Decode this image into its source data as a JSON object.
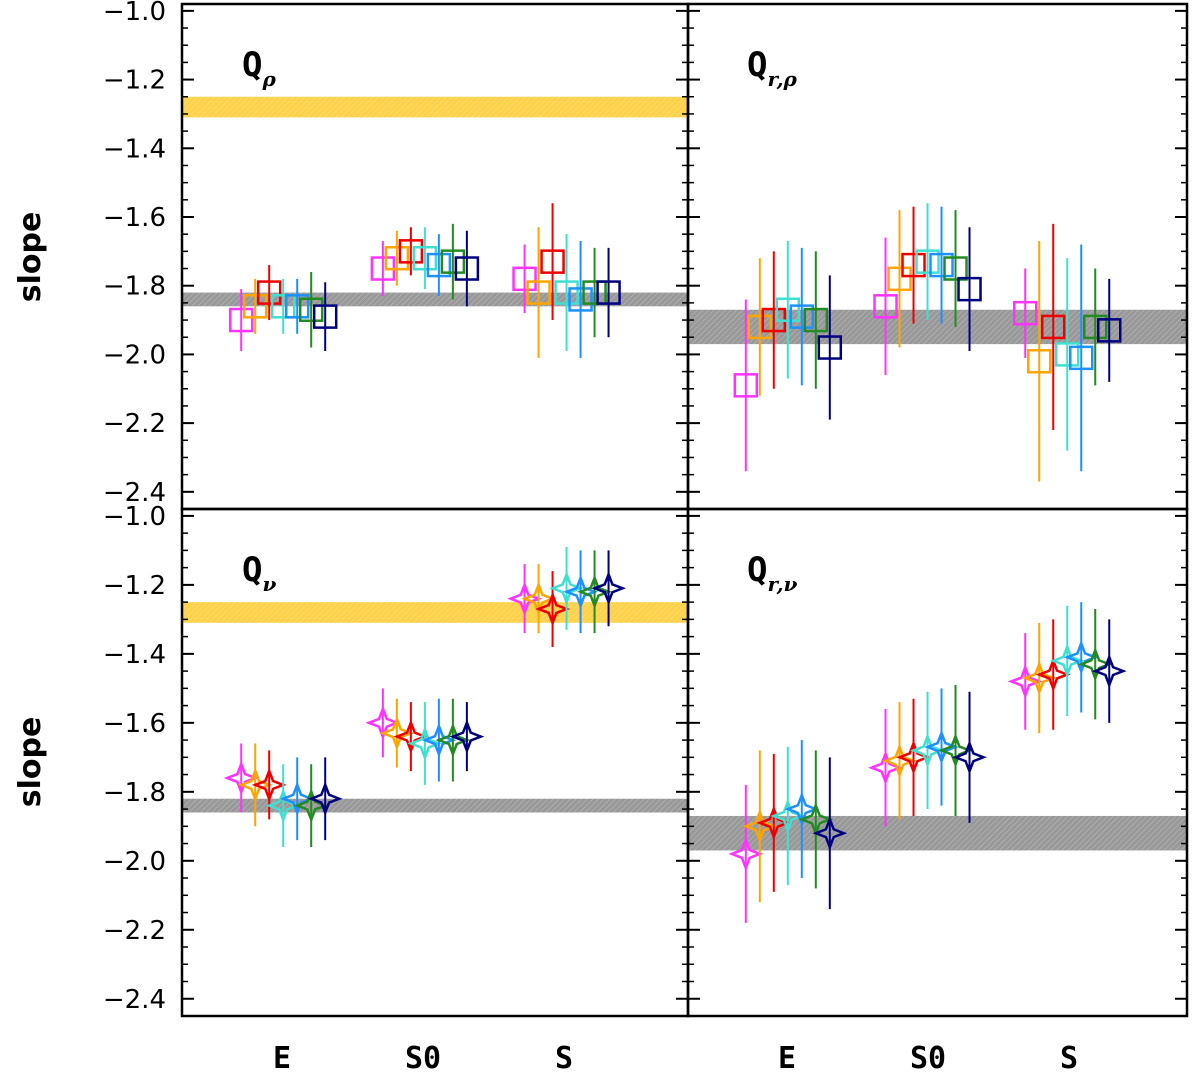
{
  "chart_data": {
    "type": "scatter",
    "ylabel": "slope",
    "categories": [
      "E",
      "S0",
      "S"
    ],
    "ylim": [
      -2.45,
      -0.98
    ],
    "yticks": [
      -1.0,
      -1.2,
      -1.4,
      -1.6,
      -1.8,
      -2.0,
      -2.2,
      -2.4
    ],
    "ytick_labels": [
      "−1.0",
      "−1.2",
      "−1.4",
      "−1.6",
      "−1.8",
      "−2.0",
      "−2.2",
      "−2.4"
    ],
    "series_colors": [
      "#ff33ff",
      "#ffa500",
      "#ee0000",
      "#40e0d0",
      "#1e90ff",
      "#228b22",
      "#000080"
    ],
    "panels": [
      {
        "id": "q-rho",
        "title": "Q",
        "subscript": "ρ",
        "marker": "square",
        "bands": [
          {
            "color": "#ffd24a",
            "y": [
              -1.25,
              -1.31
            ]
          },
          {
            "color": "#999999",
            "y": [
              -1.82,
              -1.86
            ]
          }
        ],
        "groups": [
          {
            "values": [
              -1.9,
              -1.86,
              -1.82,
              -1.86,
              -1.86,
              -1.87,
              -1.89
            ],
            "errors": [
              0.09,
              0.08,
              0.08,
              0.08,
              0.08,
              0.11,
              0.1
            ]
          },
          {
            "values": [
              -1.75,
              -1.72,
              -1.7,
              -1.72,
              -1.74,
              -1.73,
              -1.75
            ],
            "errors": [
              0.08,
              0.08,
              0.07,
              0.09,
              0.09,
              0.11,
              0.11
            ]
          },
          {
            "values": [
              -1.78,
              -1.82,
              -1.73,
              -1.82,
              -1.84,
              -1.82,
              -1.82
            ],
            "errors": [
              0.1,
              0.19,
              0.17,
              0.17,
              0.17,
              0.13,
              0.13
            ]
          }
        ]
      },
      {
        "id": "q-r-rho",
        "title": "Q",
        "subscript": "r,ρ",
        "marker": "square",
        "bands": [
          {
            "color": "#999999",
            "y": [
              -1.87,
              -1.97
            ]
          }
        ],
        "groups": [
          {
            "values": [
              -2.09,
              -1.92,
              -1.9,
              -1.87,
              -1.89,
              -1.9,
              -1.98
            ],
            "errors": [
              0.25,
              0.2,
              0.2,
              0.2,
              0.2,
              0.2,
              0.21
            ]
          },
          {
            "values": [
              -1.86,
              -1.78,
              -1.74,
              -1.73,
              -1.74,
              -1.75,
              -1.81
            ],
            "errors": [
              0.2,
              0.2,
              0.17,
              0.17,
              0.17,
              0.17,
              0.18
            ]
          },
          {
            "values": [
              -1.88,
              -2.02,
              -1.92,
              -2.0,
              -2.01,
              -1.92,
              -1.93
            ],
            "errors": [
              0.13,
              0.35,
              0.3,
              0.28,
              0.33,
              0.17,
              0.15
            ]
          }
        ]
      },
      {
        "id": "q-nu",
        "title": "Q",
        "subscript": "ν",
        "marker": "star",
        "bands": [
          {
            "color": "#ffd24a",
            "y": [
              -1.25,
              -1.31
            ]
          },
          {
            "color": "#999999",
            "y": [
              -1.82,
              -1.86
            ]
          }
        ],
        "groups": [
          {
            "values": [
              -1.76,
              -1.78,
              -1.78,
              -1.84,
              -1.82,
              -1.84,
              -1.82
            ],
            "errors": [
              0.1,
              0.12,
              0.1,
              0.12,
              0.12,
              0.12,
              0.12
            ]
          },
          {
            "values": [
              -1.6,
              -1.63,
              -1.64,
              -1.66,
              -1.65,
              -1.65,
              -1.64
            ],
            "errors": [
              0.1,
              0.1,
              0.1,
              0.12,
              0.12,
              0.12,
              0.1
            ]
          },
          {
            "values": [
              -1.24,
              -1.24,
              -1.27,
              -1.21,
              -1.22,
              -1.22,
              -1.21
            ],
            "errors": [
              0.1,
              0.1,
              0.11,
              0.12,
              0.12,
              0.12,
              0.11
            ]
          }
        ]
      },
      {
        "id": "q-r-nu",
        "title": "Q",
        "subscript": "r,ν",
        "marker": "star",
        "bands": [
          {
            "color": "#999999",
            "y": [
              -1.87,
              -1.97
            ]
          }
        ],
        "groups": [
          {
            "values": [
              -1.98,
              -1.9,
              -1.89,
              -1.87,
              -1.85,
              -1.88,
              -1.92
            ],
            "errors": [
              0.2,
              0.22,
              0.2,
              0.2,
              0.2,
              0.2,
              0.22
            ]
          },
          {
            "values": [
              -1.73,
              -1.71,
              -1.7,
              -1.68,
              -1.67,
              -1.68,
              -1.7
            ],
            "errors": [
              0.17,
              0.17,
              0.17,
              0.17,
              0.17,
              0.19,
              0.19
            ]
          },
          {
            "values": [
              -1.48,
              -1.47,
              -1.46,
              -1.42,
              -1.41,
              -1.43,
              -1.45
            ],
            "errors": [
              0.14,
              0.16,
              0.16,
              0.16,
              0.16,
              0.16,
              0.15
            ]
          }
        ]
      }
    ]
  }
}
